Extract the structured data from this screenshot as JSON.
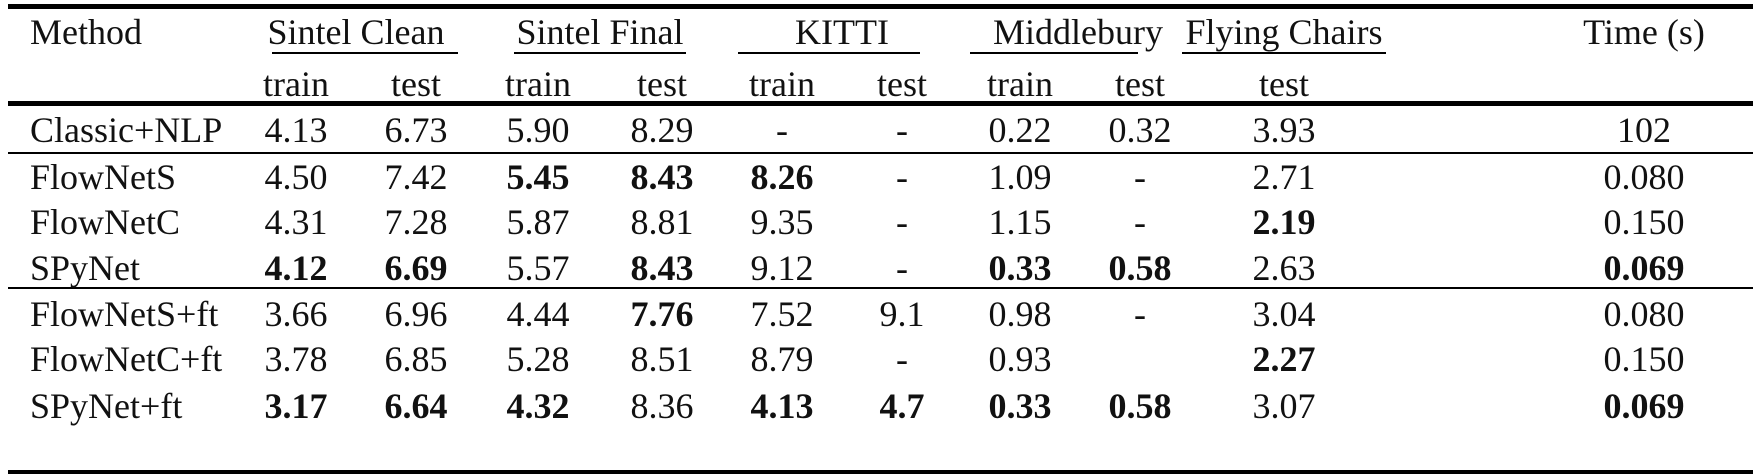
{
  "header": {
    "method": "Method",
    "groups": [
      "Sintel Clean",
      "Sintel Final",
      "KITTI",
      "Middlebury",
      "Flying Chairs"
    ],
    "time": "Time (s)",
    "subheaders": [
      "train",
      "test",
      "train",
      "test",
      "train",
      "test",
      "train",
      "test",
      "test"
    ]
  },
  "rows": [
    {
      "method": "Classic+NLP",
      "values": [
        "4.13",
        "6.73",
        "5.90",
        "8.29",
        "-",
        "-",
        "0.22",
        "0.32",
        "3.93",
        "102"
      ],
      "bold": []
    },
    {
      "method": "FlowNetS",
      "values": [
        "4.50",
        "7.42",
        "5.45",
        "8.43",
        "8.26",
        "-",
        "1.09",
        "-",
        "2.71",
        "0.080"
      ],
      "bold": [
        2,
        3,
        4
      ]
    },
    {
      "method": "FlowNetC",
      "values": [
        "4.31",
        "7.28",
        "5.87",
        "8.81",
        "9.35",
        "-",
        "1.15",
        "-",
        "2.19",
        "0.150"
      ],
      "bold": [
        8
      ]
    },
    {
      "method": "SPyNet",
      "values": [
        "4.12",
        "6.69",
        "5.57",
        "8.43",
        "9.12",
        "-",
        "0.33",
        "0.58",
        "2.63",
        "0.069"
      ],
      "bold": [
        0,
        1,
        3,
        6,
        7,
        9
      ]
    },
    {
      "method": "FlowNetS+ft",
      "values": [
        "3.66",
        "6.96",
        "4.44",
        "7.76",
        "7.52",
        "9.1",
        "0.98",
        "-",
        "3.04",
        "0.080"
      ],
      "bold": [
        3
      ]
    },
    {
      "method": "FlowNetC+ft",
      "values": [
        "3.78",
        "6.85",
        "5.28",
        "8.51",
        "8.79",
        "-",
        "0.93",
        "",
        "2.27",
        "0.150"
      ],
      "bold": [
        8
      ]
    },
    {
      "method": "SPyNet+ft",
      "values": [
        "3.17",
        "6.64",
        "4.32",
        "8.36",
        "4.13",
        "4.7",
        "0.33",
        "0.58",
        "3.07",
        "0.069"
      ],
      "bold": [
        0,
        1,
        2,
        4,
        5,
        6,
        7,
        9
      ]
    }
  ]
}
